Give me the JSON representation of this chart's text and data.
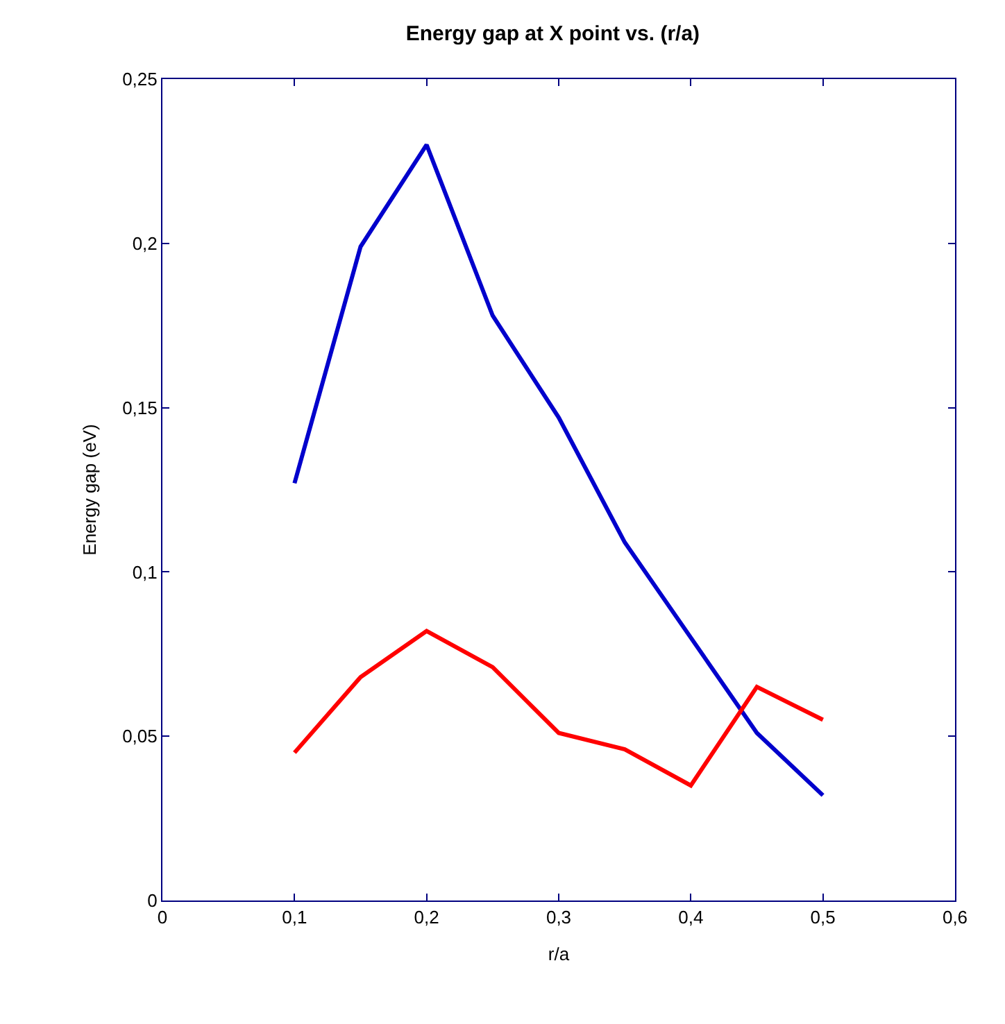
{
  "chart_data": {
    "type": "line",
    "title": "Energy gap at X point vs. (r/a)",
    "xlabel": "r/a",
    "ylabel": "Energy gap (eV)",
    "x": [
      0.1,
      0.15,
      0.2,
      0.25,
      0.3,
      0.35,
      0.4,
      0.45,
      0.5
    ],
    "series": [
      {
        "color": "#0000cc",
        "values": [
          0.127,
          0.199,
          0.23,
          0.178,
          0.147,
          0.109,
          0.08,
          0.051,
          0.032
        ]
      },
      {
        "color": "#ff0000",
        "values": [
          0.045,
          0.068,
          0.082,
          0.071,
          0.051,
          0.046,
          0.035,
          0.065,
          0.055
        ]
      }
    ],
    "xlim": [
      0,
      0.6
    ],
    "xticks": [
      0,
      {
        "value": 0.1,
        "label": "0,1"
      },
      {
        "value": 0.2,
        "label": "0,2"
      },
      {
        "value": 0.3,
        "label": "0,3"
      },
      {
        "value": 0.4,
        "label": "0,4"
      },
      {
        "value": 0.5,
        "label": "0,5"
      },
      {
        "value": 0.6,
        "label": "0,6"
      }
    ],
    "ylim": [
      0,
      0.25
    ],
    "yticks": [
      0,
      {
        "value": 0.05,
        "label": "0,05"
      },
      {
        "value": 0.1,
        "label": "0,1"
      },
      {
        "value": 0.15,
        "label": "0,15"
      },
      {
        "value": 0.2,
        "label": "0,2"
      },
      {
        "value": 0.25,
        "label": "0,25"
      }
    ],
    "marker": "none",
    "line_style": "solid"
  }
}
